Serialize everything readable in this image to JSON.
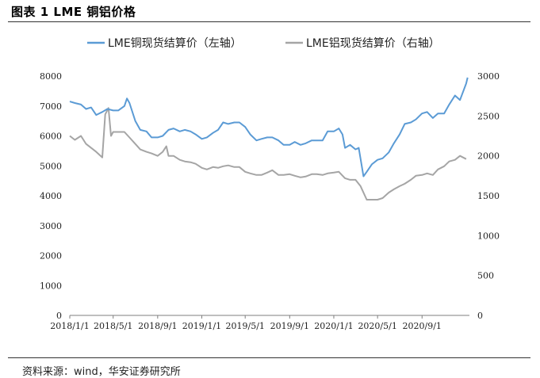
{
  "figure": {
    "title": "图表 1 LME 铜铝价格",
    "source": "资料来源：wind，华安证券研究所"
  },
  "chart_data": {
    "type": "line",
    "title": "",
    "xlabel": "",
    "ylabel": "",
    "legend_position": "top",
    "grid": false,
    "x_ticks": [
      "2018/1/1",
      "2018/5/1",
      "2018/9/1",
      "2019/1/1",
      "2019/5/1",
      "2019/9/1",
      "2020/1/1",
      "2020/5/1",
      "2020/9/1"
    ],
    "y_left": {
      "lim": [
        0,
        8000
      ],
      "ticks": [
        "0",
        "1000",
        "2000",
        "3000",
        "4000",
        "5000",
        "6000",
        "7000",
        "8000"
      ]
    },
    "y_right": {
      "lim": [
        0,
        3000
      ],
      "ticks": [
        "0",
        "500",
        "1000",
        "1500",
        "2000",
        "2500",
        "3000"
      ]
    },
    "series": [
      {
        "name": "LME铜现货结算价（左轴）",
        "axis": "left",
        "color": "#5b9bd5",
        "points": [
          [
            "2018-01-01",
            7150
          ],
          [
            "2018-01-15",
            7100
          ],
          [
            "2018-02-01",
            7050
          ],
          [
            "2018-02-15",
            6900
          ],
          [
            "2018-03-01",
            6950
          ],
          [
            "2018-03-15",
            6700
          ],
          [
            "2018-04-01",
            6800
          ],
          [
            "2018-04-15",
            6900
          ],
          [
            "2018-05-01",
            6850
          ],
          [
            "2018-05-15",
            6850
          ],
          [
            "2018-06-01",
            7000
          ],
          [
            "2018-06-08",
            7250
          ],
          [
            "2018-06-15",
            7100
          ],
          [
            "2018-07-01",
            6500
          ],
          [
            "2018-07-15",
            6200
          ],
          [
            "2018-08-01",
            6150
          ],
          [
            "2018-08-15",
            5950
          ],
          [
            "2018-09-01",
            5950
          ],
          [
            "2018-09-15",
            6000
          ],
          [
            "2018-10-01",
            6200
          ],
          [
            "2018-10-15",
            6250
          ],
          [
            "2018-11-01",
            6150
          ],
          [
            "2018-11-15",
            6200
          ],
          [
            "2018-12-01",
            6150
          ],
          [
            "2018-12-15",
            6050
          ],
          [
            "2019-01-01",
            5900
          ],
          [
            "2019-01-15",
            5950
          ],
          [
            "2019-02-01",
            6100
          ],
          [
            "2019-02-15",
            6200
          ],
          [
            "2019-03-01",
            6450
          ],
          [
            "2019-03-15",
            6400
          ],
          [
            "2019-04-01",
            6450
          ],
          [
            "2019-04-15",
            6450
          ],
          [
            "2019-05-01",
            6300
          ],
          [
            "2019-05-15",
            6050
          ],
          [
            "2019-06-01",
            5850
          ],
          [
            "2019-06-15",
            5900
          ],
          [
            "2019-07-01",
            5950
          ],
          [
            "2019-07-15",
            5950
          ],
          [
            "2019-08-01",
            5850
          ],
          [
            "2019-08-15",
            5700
          ],
          [
            "2019-09-01",
            5700
          ],
          [
            "2019-09-15",
            5800
          ],
          [
            "2019-10-01",
            5700
          ],
          [
            "2019-10-15",
            5750
          ],
          [
            "2019-11-01",
            5850
          ],
          [
            "2019-11-15",
            5850
          ],
          [
            "2019-12-01",
            5850
          ],
          [
            "2019-12-15",
            6150
          ],
          [
            "2020-01-01",
            6150
          ],
          [
            "2020-01-15",
            6250
          ],
          [
            "2020-01-25",
            6050
          ],
          [
            "2020-02-01",
            5600
          ],
          [
            "2020-02-15",
            5700
          ],
          [
            "2020-03-01",
            5550
          ],
          [
            "2020-03-10",
            5600
          ],
          [
            "2020-03-23",
            4650
          ],
          [
            "2020-04-01",
            4800
          ],
          [
            "2020-04-15",
            5050
          ],
          [
            "2020-05-01",
            5200
          ],
          [
            "2020-05-15",
            5250
          ],
          [
            "2020-06-01",
            5450
          ],
          [
            "2020-06-15",
            5750
          ],
          [
            "2020-07-01",
            6050
          ],
          [
            "2020-07-15",
            6400
          ],
          [
            "2020-08-01",
            6450
          ],
          [
            "2020-08-15",
            6550
          ],
          [
            "2020-09-01",
            6750
          ],
          [
            "2020-09-15",
            6800
          ],
          [
            "2020-10-01",
            6600
          ],
          [
            "2020-10-15",
            6750
          ],
          [
            "2020-11-01",
            6750
          ],
          [
            "2020-11-15",
            7050
          ],
          [
            "2020-12-01",
            7350
          ],
          [
            "2020-12-15",
            7200
          ],
          [
            "2021-01-01",
            7750
          ],
          [
            "2021-01-05",
            7950
          ]
        ]
      },
      {
        "name": "LME铝现货结算价（右轴）",
        "axis": "right",
        "color": "#a5a5a5",
        "points": [
          [
            "2018-01-01",
            2250
          ],
          [
            "2018-01-15",
            2200
          ],
          [
            "2018-02-01",
            2250
          ],
          [
            "2018-02-15",
            2150
          ],
          [
            "2018-03-01",
            2100
          ],
          [
            "2018-03-15",
            2050
          ],
          [
            "2018-04-01",
            1980
          ],
          [
            "2018-04-09",
            2520
          ],
          [
            "2018-04-18",
            2600
          ],
          [
            "2018-04-25",
            2250
          ],
          [
            "2018-05-01",
            2300
          ],
          [
            "2018-05-15",
            2300
          ],
          [
            "2018-06-01",
            2300
          ],
          [
            "2018-06-15",
            2230
          ],
          [
            "2018-07-01",
            2150
          ],
          [
            "2018-07-15",
            2080
          ],
          [
            "2018-08-01",
            2050
          ],
          [
            "2018-08-15",
            2030
          ],
          [
            "2018-09-01",
            2000
          ],
          [
            "2018-09-15",
            2050
          ],
          [
            "2018-09-25",
            2120
          ],
          [
            "2018-10-01",
            2000
          ],
          [
            "2018-10-15",
            2000
          ],
          [
            "2018-11-01",
            1950
          ],
          [
            "2018-11-15",
            1930
          ],
          [
            "2018-12-01",
            1920
          ],
          [
            "2018-12-15",
            1900
          ],
          [
            "2019-01-01",
            1850
          ],
          [
            "2019-01-15",
            1830
          ],
          [
            "2019-02-01",
            1860
          ],
          [
            "2019-02-15",
            1850
          ],
          [
            "2019-03-01",
            1870
          ],
          [
            "2019-03-15",
            1880
          ],
          [
            "2019-04-01",
            1860
          ],
          [
            "2019-04-15",
            1860
          ],
          [
            "2019-05-01",
            1800
          ],
          [
            "2019-05-15",
            1780
          ],
          [
            "2019-06-01",
            1760
          ],
          [
            "2019-06-15",
            1760
          ],
          [
            "2019-07-01",
            1790
          ],
          [
            "2019-07-15",
            1820
          ],
          [
            "2019-08-01",
            1760
          ],
          [
            "2019-08-15",
            1760
          ],
          [
            "2019-09-01",
            1770
          ],
          [
            "2019-09-15",
            1750
          ],
          [
            "2019-10-01",
            1730
          ],
          [
            "2019-10-15",
            1740
          ],
          [
            "2019-11-01",
            1770
          ],
          [
            "2019-11-15",
            1770
          ],
          [
            "2019-12-01",
            1760
          ],
          [
            "2019-12-15",
            1780
          ],
          [
            "2020-01-01",
            1790
          ],
          [
            "2020-01-15",
            1800
          ],
          [
            "2020-02-01",
            1720
          ],
          [
            "2020-02-15",
            1700
          ],
          [
            "2020-03-01",
            1700
          ],
          [
            "2020-03-15",
            1620
          ],
          [
            "2020-04-01",
            1450
          ],
          [
            "2020-04-15",
            1450
          ],
          [
            "2020-05-01",
            1450
          ],
          [
            "2020-05-15",
            1470
          ],
          [
            "2020-06-01",
            1540
          ],
          [
            "2020-06-15",
            1580
          ],
          [
            "2020-07-01",
            1620
          ],
          [
            "2020-07-15",
            1650
          ],
          [
            "2020-08-01",
            1700
          ],
          [
            "2020-08-15",
            1750
          ],
          [
            "2020-09-01",
            1760
          ],
          [
            "2020-09-15",
            1780
          ],
          [
            "2020-10-01",
            1760
          ],
          [
            "2020-10-15",
            1830
          ],
          [
            "2020-11-01",
            1870
          ],
          [
            "2020-11-15",
            1930
          ],
          [
            "2020-12-01",
            1950
          ],
          [
            "2020-12-15",
            2000
          ],
          [
            "2021-01-01",
            1960
          ]
        ]
      }
    ]
  }
}
